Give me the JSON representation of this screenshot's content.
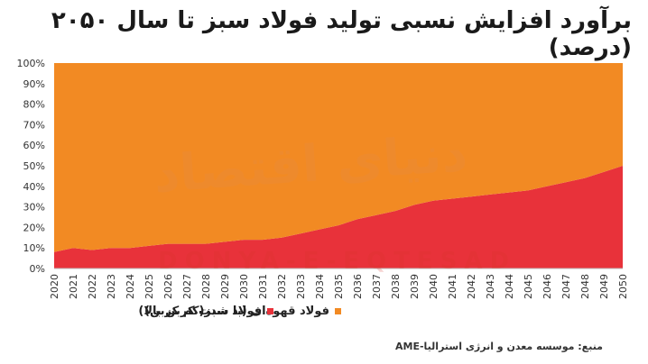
{
  "title": "برآورد افزایش نسبی تولید فولاد سبز تا سال ۲۰۵۰ (درصد)",
  "legend": {
    "brown": "فولاد قهوه‌ای (با شدت کربن بالا)",
    "green": "فولاد سبز(کم کربن)"
  },
  "source": "منبع: موسسه معدن و انرژی استرالیا-AME",
  "watermark": "دنیای اقتصاد",
  "watermark_latin": "DONYA-E-EQTESAD",
  "colors": {
    "green_steel": "#e8323a",
    "brown_steel": "#f28a23"
  },
  "chart_data": {
    "type": "area",
    "stacked": true,
    "percent": true,
    "x": [
      "2020",
      "2021",
      "2022",
      "2023",
      "2024",
      "2025",
      "2026",
      "2027",
      "2028",
      "2029",
      "2030",
      "2031",
      "2032",
      "2033",
      "2034",
      "2035",
      "2036",
      "2037",
      "2038",
      "2039",
      "2040",
      "2041",
      "2042",
      "2043",
      "2044",
      "2045",
      "2046",
      "2047",
      "2048",
      "2049",
      "2050"
    ],
    "series": [
      {
        "name": "فولاد سبز(کم کربن)",
        "values": [
          8,
          10,
          9,
          10,
          10,
          11,
          12,
          12,
          12,
          13,
          14,
          14,
          15,
          17,
          19,
          21,
          24,
          26,
          28,
          31,
          33,
          34,
          35,
          36,
          37,
          38,
          40,
          42,
          44,
          47,
          50
        ]
      },
      {
        "name": "فولاد قهوه‌ای (با شدت کربن بالا)",
        "values": [
          92,
          90,
          91,
          90,
          90,
          89,
          88,
          88,
          88,
          87,
          86,
          86,
          85,
          83,
          81,
          79,
          76,
          74,
          72,
          69,
          67,
          66,
          65,
          64,
          63,
          62,
          60,
          58,
          56,
          53,
          50
        ]
      }
    ],
    "yticks": [
      "0%",
      "10%",
      "20%",
      "30%",
      "40%",
      "50%",
      "60%",
      "70%",
      "80%",
      "90%",
      "100%"
    ],
    "ylim": [
      0,
      100
    ]
  }
}
